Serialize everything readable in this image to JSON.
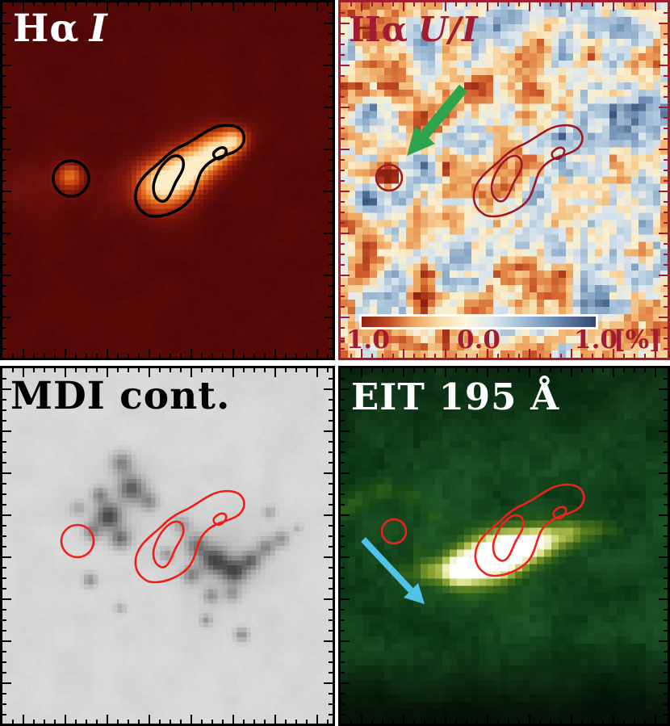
{
  "figure": {
    "background_color": "#ffffff",
    "panels": {
      "ha_i": {
        "title_prefix": "Hα",
        "title_suffix": "I",
        "title_color": "#ffffff",
        "frame_color": "#000000",
        "contour_color": "#000000"
      },
      "ha_ui": {
        "title_prefix": "Hα",
        "title_suffix": "U/I",
        "title_color": "#a11c30",
        "frame_color": "#a11c30",
        "contour_color": "#9c1826",
        "arrow": {
          "name": "green-arrow",
          "color": "#2da44e"
        },
        "colorbar": {
          "tick_labels": [
            "-1.0",
            "0.0",
            "1.0"
          ],
          "unit_label": "[%]",
          "label_color": "#a11c30",
          "gradient": [
            "#8f2212",
            "#bc4a22",
            "#e08а48",
            "#eda55f",
            "#f7dca8",
            "#fdf6dd",
            "#dde7ee",
            "#a9c3d9",
            "#7f9fc0",
            "#54719b",
            "#33486e"
          ]
        }
      },
      "mdi": {
        "title": "MDI cont.",
        "title_color": "#000000",
        "frame_color": "#000000",
        "contour_color": "#f01e14"
      },
      "eit": {
        "title": "EIT 195 Å",
        "title_color": "#ffffff",
        "frame_color": "#000000",
        "contour_color": "#ee2020",
        "arrow": {
          "name": "cyan-arrow",
          "color": "#4fc3e8"
        }
      }
    }
  }
}
